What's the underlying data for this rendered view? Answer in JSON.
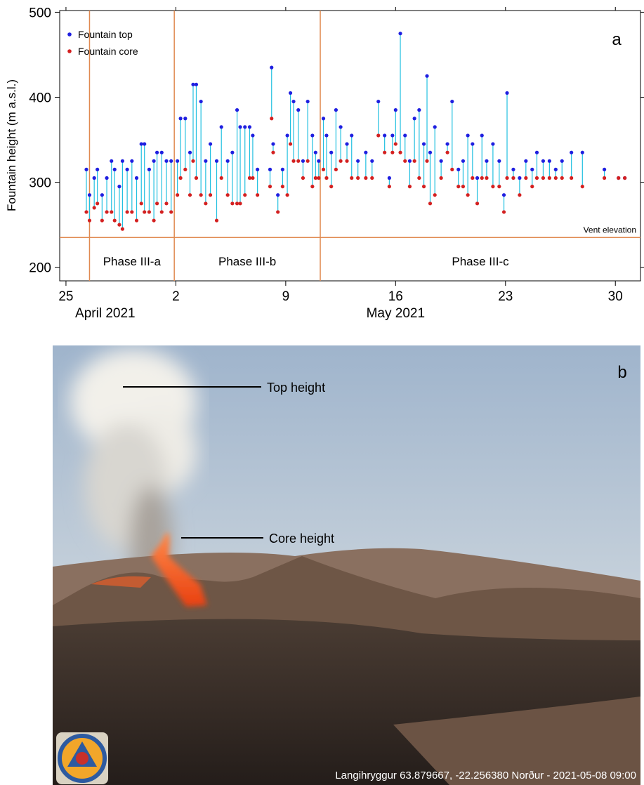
{
  "chart_data": {
    "type": "stem-scatter",
    "ylabel": "Fountain height (m a.s.l.)",
    "panel_label": "a",
    "xlim": [
      114.6,
      151.6
    ],
    "ylim": [
      184,
      502
    ],
    "xticks": [
      {
        "value": 115,
        "label": "25"
      },
      {
        "value": 122,
        "label": "2"
      },
      {
        "value": 129,
        "label": "9"
      },
      {
        "value": 136,
        "label": "16"
      },
      {
        "value": 143,
        "label": "23"
      },
      {
        "value": 150,
        "label": "30"
      }
    ],
    "yticks": [
      200,
      300,
      400,
      500
    ],
    "month_labels": [
      {
        "value": 117.5,
        "label": "April 2021"
      },
      {
        "value": 136,
        "label": "May 2021"
      }
    ],
    "legend": "upper left",
    "stem_color": "#22c0e0",
    "x": [
      116.3,
      116.5,
      116.8,
      117.0,
      117.3,
      117.6,
      117.9,
      118.1,
      118.4,
      118.6,
      118.9,
      119.2,
      119.5,
      119.8,
      120.0,
      120.3,
      120.6,
      120.8,
      121.1,
      121.4,
      121.7,
      122.1,
      122.3,
      122.6,
      122.9,
      123.1,
      123.3,
      123.6,
      123.9,
      124.2,
      124.6,
      124.9,
      125.3,
      125.6,
      125.9,
      126.1,
      126.4,
      126.7,
      126.9,
      127.2,
      128.0,
      128.1,
      128.2,
      128.5,
      128.8,
      129.1,
      129.3,
      129.5,
      129.8,
      130.1,
      130.4,
      130.7,
      130.9,
      131.1,
      131.4,
      131.6,
      131.9,
      132.2,
      132.5,
      132.9,
      133.2,
      133.6,
      134.1,
      134.5,
      134.9,
      135.3,
      135.6,
      135.8,
      136.0,
      136.3,
      136.6,
      136.9,
      137.2,
      137.5,
      137.8,
      138.0,
      138.2,
      138.5,
      138.9,
      139.3,
      139.6,
      140.0,
      140.3,
      140.6,
      140.9,
      141.2,
      141.5,
      141.8,
      142.2,
      142.6,
      142.9,
      143.1,
      143.5,
      143.9,
      144.3,
      144.7,
      145.0,
      145.4,
      145.8,
      146.2,
      146.6,
      147.2,
      147.9,
      149.3,
      150.2,
      150.6
    ],
    "series": [
      {
        "name": "Fountain top",
        "color": "#1f1fe0",
        "values": [
          315,
          285,
          305,
          315,
          285,
          305,
          325,
          315,
          295,
          325,
          315,
          325,
          305,
          345,
          345,
          315,
          325,
          335,
          335,
          325,
          325,
          325,
          375,
          375,
          335,
          415,
          415,
          395,
          325,
          345,
          325,
          365,
          325,
          335,
          385,
          365,
          365,
          365,
          355,
          315,
          315,
          435,
          345,
          285,
          315,
          355,
          405,
          395,
          385,
          325,
          395,
          355,
          335,
          325,
          375,
          355,
          335,
          385,
          365,
          345,
          355,
          325,
          335,
          325,
          395,
          355,
          305,
          355,
          385,
          475,
          355,
          325,
          375,
          385,
          345,
          425,
          335,
          365,
          325,
          345,
          395,
          315,
          325,
          355,
          345,
          305,
          355,
          325,
          345,
          325,
          285,
          405,
          315,
          305,
          325,
          315,
          335,
          325,
          325,
          315,
          325,
          335,
          335,
          315,
          305,
          305
        ]
      },
      {
        "name": "Fountain core",
        "color": "#d42020",
        "values": [
          265,
          255,
          270,
          275,
          255,
          265,
          265,
          255,
          250,
          245,
          265,
          265,
          255,
          275,
          265,
          265,
          255,
          275,
          265,
          275,
          265,
          285,
          305,
          315,
          285,
          325,
          305,
          285,
          275,
          285,
          255,
          305,
          285,
          275,
          275,
          275,
          285,
          305,
          305,
          285,
          295,
          375,
          335,
          265,
          295,
          285,
          345,
          325,
          325,
          305,
          325,
          295,
          305,
          305,
          315,
          305,
          295,
          315,
          325,
          325,
          305,
          305,
          305,
          305,
          355,
          335,
          295,
          335,
          345,
          335,
          325,
          295,
          325,
          305,
          295,
          325,
          275,
          285,
          305,
          335,
          315,
          295,
          295,
          285,
          305,
          275,
          305,
          305,
          295,
          295,
          265,
          305,
          305,
          285,
          305,
          295,
          305,
          305,
          305,
          305,
          305,
          305,
          295,
          305,
          305,
          305
        ]
      }
    ],
    "reference_lines": [
      {
        "value": 235,
        "label": "Vent elevation"
      }
    ],
    "phases": [
      {
        "label": "Phase III-a",
        "start": 116.5,
        "end": 121.9
      },
      {
        "label": "Phase III-b",
        "start": 121.9,
        "end": 131.2
      },
      {
        "label": "Phase III-c",
        "start": 131.2,
        "end": 151.6
      }
    ]
  },
  "photo": {
    "label": "b",
    "annotations": [
      "Top height",
      "Core height"
    ],
    "caption": "Langihryggur 63.879667, -22.256380 Norður - 2021-05-08 09:00"
  }
}
